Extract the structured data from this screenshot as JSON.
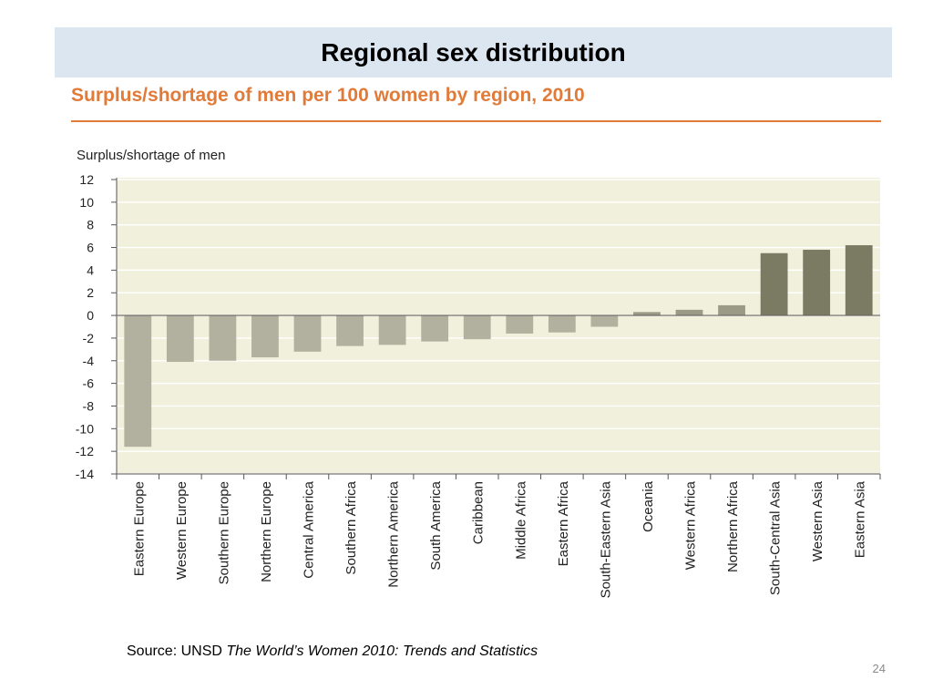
{
  "slide": {
    "title": "Regional sex distribution",
    "source_prefix": "Source: UNSD ",
    "source_title": "The World’s Women 2010: Trends and Statistics",
    "page_number": "24"
  },
  "chart_data": {
    "type": "bar",
    "title": "Surplus/shortage of men per 100 women by region, 2010",
    "ylabel": "Surplus/shortage of men",
    "xlabel": "",
    "ylim": [
      -14,
      12
    ],
    "yticks": [
      12,
      10,
      8,
      6,
      4,
      2,
      0,
      -2,
      -4,
      -6,
      -8,
      -10,
      -12,
      -14
    ],
    "grid": true,
    "categories": [
      "Eastern Europe",
      "Western Europe",
      "Southern Europe",
      "Northern Europe",
      "Central America",
      "Southern Africa",
      "Northern America",
      "South America",
      "Caribbean",
      "Middle Africa",
      "Eastern Africa",
      "South-Eastern Asia",
      "Oceania",
      "Western Africa",
      "Northern Africa",
      "South-Central Asia",
      "Western Asia",
      "Eastern Asia"
    ],
    "values": [
      -11.6,
      -4.1,
      -4.0,
      -3.7,
      -3.2,
      -2.7,
      -2.6,
      -2.3,
      -2.1,
      -1.6,
      -1.5,
      -1.0,
      0.3,
      0.5,
      0.9,
      5.5,
      5.8,
      6.2
    ],
    "colors": {
      "negative": "#b2b1a0",
      "small_positive": "#9b9a86",
      "large_positive": "#7b7a63",
      "plot_background": "#f0f0dc",
      "grid": "#ffffff",
      "axis": "#555555"
    }
  }
}
